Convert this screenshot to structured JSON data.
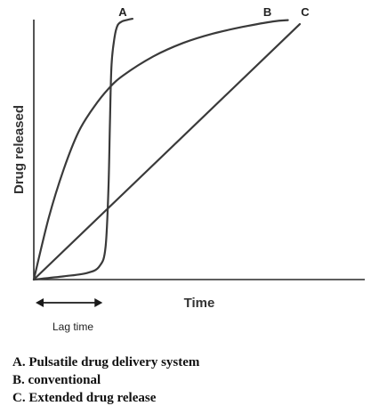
{
  "chart_data": {
    "type": "line",
    "xlabel": "Time",
    "ylabel": "Drug released",
    "xlim": [
      0,
      10
    ],
    "ylim": [
      0,
      10
    ],
    "grid": false,
    "annotation": "Lag time",
    "lag_interval": [
      0,
      2.3
    ],
    "series": [
      {
        "name": "A",
        "x": [
          0,
          1,
          1.8,
          2.2,
          2.4,
          2.5,
          2.55,
          2.6,
          2.7,
          2.8,
          2.95,
          3.1,
          3.3
        ],
        "y": [
          0,
          0.12,
          0.25,
          0.5,
          1.2,
          3.5,
          6.0,
          8.0,
          9.0,
          9.45,
          9.6,
          9.65,
          9.7
        ]
      },
      {
        "name": "B",
        "x": [
          0,
          0.5,
          1,
          1.5,
          2,
          2.5,
          3,
          4,
          5,
          6,
          7,
          8,
          8.5
        ],
        "y": [
          0,
          2.3,
          4.1,
          5.5,
          6.4,
          7.1,
          7.6,
          8.3,
          8.8,
          9.15,
          9.4,
          9.6,
          9.65
        ]
      },
      {
        "name": "C",
        "x": [
          0,
          8.9
        ],
        "y": [
          0,
          9.5
        ]
      }
    ]
  },
  "legend": {
    "line_a": "A. Pulsatile drug delivery system",
    "line_b": "B. conventional",
    "line_c": "C. Extended drug release"
  }
}
